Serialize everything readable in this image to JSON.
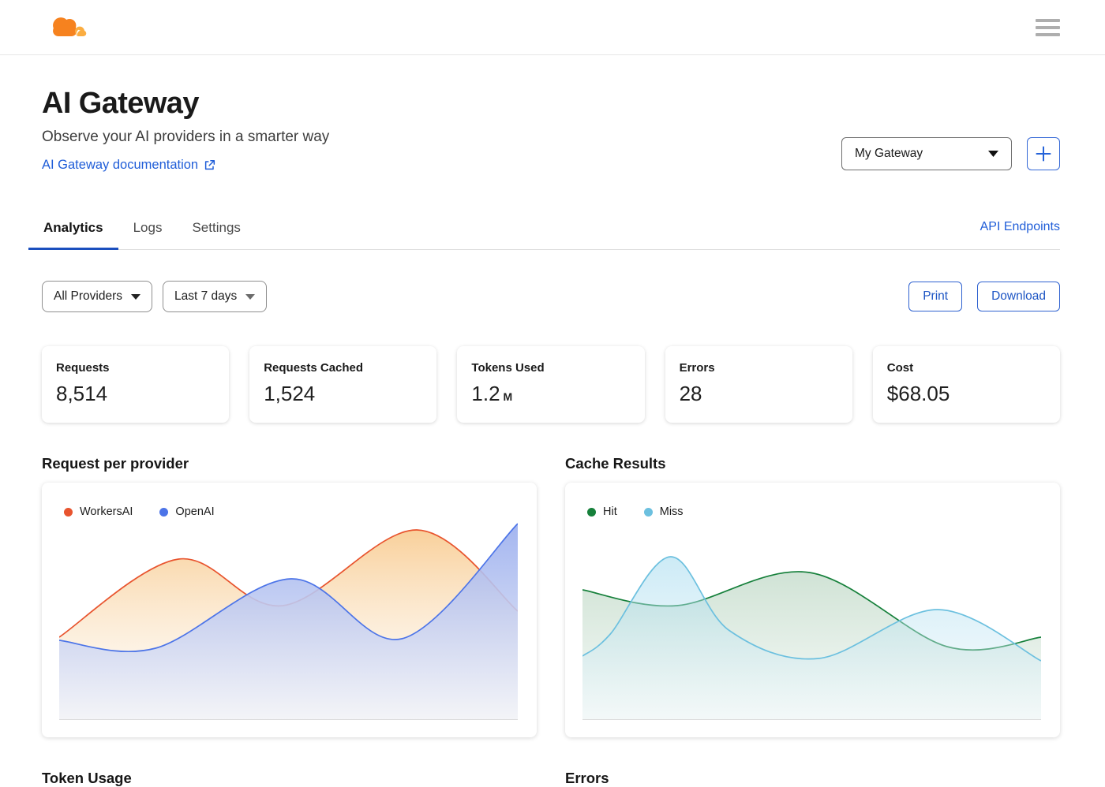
{
  "colors": {
    "accent_blue": "#1B4FBE",
    "link_blue": "#1F5DD8",
    "button_border_blue": "#2F62D0",
    "logo_orange": "#F6821F",
    "logo_light_orange": "#FBAD41",
    "hamburger_gray": "#AEAEAE"
  },
  "topbar": {
    "logo": "cloudflare-logo",
    "menu": "hamburger-icon"
  },
  "hero": {
    "title": "AI Gateway",
    "subtitle": "Observe your AI providers in a smarter way",
    "doc_link": "AI Gateway documentation"
  },
  "gateway": {
    "selected": "My Gateway",
    "add_button": "+"
  },
  "tabs": [
    {
      "label": "Analytics",
      "active": true
    },
    {
      "label": "Logs",
      "active": false
    },
    {
      "label": "Settings",
      "active": false
    }
  ],
  "api_endpoints_label": "API Endpoints",
  "filters": {
    "provider": "All Providers",
    "range": "Last 7 days"
  },
  "actions": {
    "print": "Print",
    "download": "Download"
  },
  "stats": [
    {
      "label": "Requests",
      "value": "8,514"
    },
    {
      "label": "Requests Cached",
      "value": "1,524"
    },
    {
      "label": "Tokens Used",
      "value": "1.2",
      "suffix": "M"
    },
    {
      "label": "Errors",
      "value": "28"
    },
    {
      "label": "Cost",
      "value": "$68.05"
    }
  ],
  "chart_data": [
    {
      "type": "area",
      "title": "Request per provider",
      "legend_position": "top-left",
      "axes_visible": false,
      "y_scale": "normalized 0-1 (no axis tick labels visible)",
      "series": [
        {
          "name": "WorkersAI",
          "color": "#E8542E",
          "fill_top": "rgba(246,188,112,0.75)",
          "fill_bottom": "rgba(252,245,234,0.25)",
          "points": [
            [
              0,
              0.416
            ],
            [
              0.26,
              0.812
            ],
            [
              0.488,
              0.576
            ],
            [
              0.78,
              0.96
            ],
            [
              1,
              0.548
            ]
          ]
        },
        {
          "name": "OpenAI",
          "color": "#4C74E8",
          "fill_top": "rgba(153,173,238,0.90)",
          "fill_bottom": "rgba(242,243,247,0.88)",
          "points": [
            [
              0,
              0.4
            ],
            [
              0.21,
              0.36
            ],
            [
              0.505,
              0.712
            ],
            [
              0.747,
              0.408
            ],
            [
              1,
              0.992
            ]
          ]
        }
      ]
    },
    {
      "type": "area",
      "title": "Cache Results",
      "legend_position": "top-left",
      "axes_visible": false,
      "y_scale": "normalized 0-1 (no axis tick labels visible)",
      "series": [
        {
          "name": "Hit",
          "color": "#16803B",
          "fill_top": "rgba(118,173,133,0.45)",
          "fill_bottom": "rgba(235,243,238,0.40)",
          "points": [
            [
              0,
              0.656
            ],
            [
              0.206,
              0.576
            ],
            [
              0.495,
              0.744
            ],
            [
              0.795,
              0.368
            ],
            [
              1,
              0.416
            ]
          ]
        },
        {
          "name": "Miss",
          "color": "#6CC0DF",
          "fill_top": "rgba(140,209,235,0.55)",
          "fill_bottom": "rgba(236,246,249,0.35)",
          "points": [
            [
              0,
              0.32
            ],
            [
              0.06,
              0.43
            ],
            [
              0.192,
              0.824
            ],
            [
              0.32,
              0.45
            ],
            [
              0.515,
              0.308
            ],
            [
              0.775,
              0.556
            ],
            [
              1,
              0.296
            ]
          ]
        }
      ]
    }
  ],
  "bottom_sections": [
    {
      "title": "Token Usage"
    },
    {
      "title": "Errors"
    }
  ]
}
